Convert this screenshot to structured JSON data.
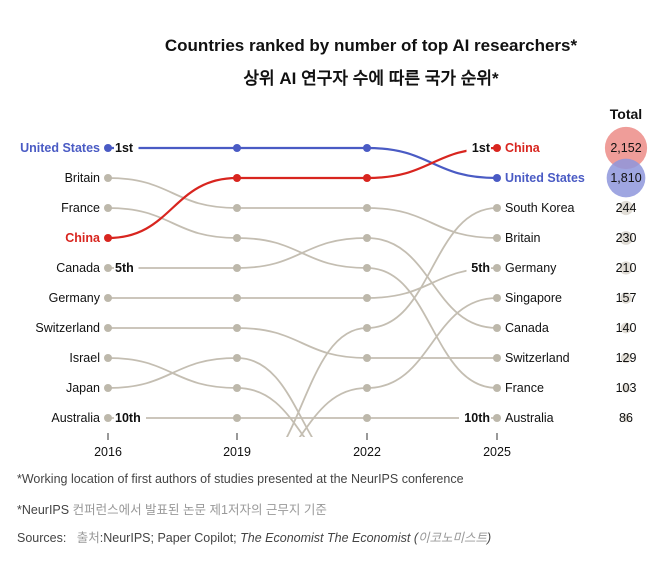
{
  "chart_data": {
    "type": "bump",
    "title": "Countries ranked by number of top AI researchers*",
    "subtitle": "상위 AI 연구자 수에 따른 국가 순위*",
    "x": [
      "2016",
      "2019",
      "2022",
      "2025"
    ],
    "rank_labels": {
      "1": "1st",
      "5": "5th",
      "10": "10th"
    },
    "totals_header": "Total",
    "series": [
      {
        "name": "United States",
        "ranks": [
          1,
          1,
          1,
          2
        ],
        "total": 1810,
        "total_label": "1,810",
        "highlight": "#4a5bc4",
        "circle": "#8e96dc"
      },
      {
        "name": "China",
        "ranks": [
          4,
          2,
          2,
          1
        ],
        "total": 2152,
        "total_label": "2,152",
        "highlight": "#d8251f",
        "circle": "#ec8c87"
      },
      {
        "name": "Britain",
        "ranks": [
          2,
          3,
          3,
          4
        ],
        "total": 230,
        "total_label": "230"
      },
      {
        "name": "France",
        "ranks": [
          3,
          4,
          5,
          9
        ],
        "total": 103,
        "total_label": "103"
      },
      {
        "name": "Canada",
        "ranks": [
          5,
          5,
          4,
          7
        ],
        "total": 140,
        "total_label": "140"
      },
      {
        "name": "Germany",
        "ranks": [
          6,
          6,
          6,
          5
        ],
        "total": 210,
        "total_label": "210"
      },
      {
        "name": "Switzerland",
        "ranks": [
          7,
          7,
          8,
          8
        ],
        "total": 129,
        "total_label": "129"
      },
      {
        "name": "Israel",
        "ranks": [
          8,
          9,
          null,
          null
        ]
      },
      {
        "name": "Japan",
        "ranks": [
          9,
          8,
          null,
          null
        ]
      },
      {
        "name": "Australia",
        "ranks": [
          10,
          10,
          10,
          10
        ],
        "total": 86,
        "total_label": "86"
      },
      {
        "name": "South Korea",
        "ranks": [
          null,
          null,
          7,
          3
        ],
        "total": 244,
        "total_label": "244"
      },
      {
        "name": "Singapore",
        "ranks": [
          null,
          null,
          9,
          6
        ],
        "total": 157,
        "total_label": "157"
      }
    ],
    "colors": {
      "other": "#c4beb2",
      "dot": "#bdb8ab"
    }
  },
  "footnotes": {
    "note_en": "*Working location of first authors of studies presented at the NeurIPS conference",
    "note_ko_prefix": "*NeurIPS",
    "note_ko": " 컨퍼런스에서 발표된 논문 제1저자의 근무지 기준",
    "sources_label": "Sources:",
    "sources_ko": "출처",
    "sources_text": ":NeurIPS; Paper Copilot; ",
    "sources_italic": "The Economist  The Economist (",
    "sources_ko2": "이코노미스트",
    "sources_close": ")"
  }
}
